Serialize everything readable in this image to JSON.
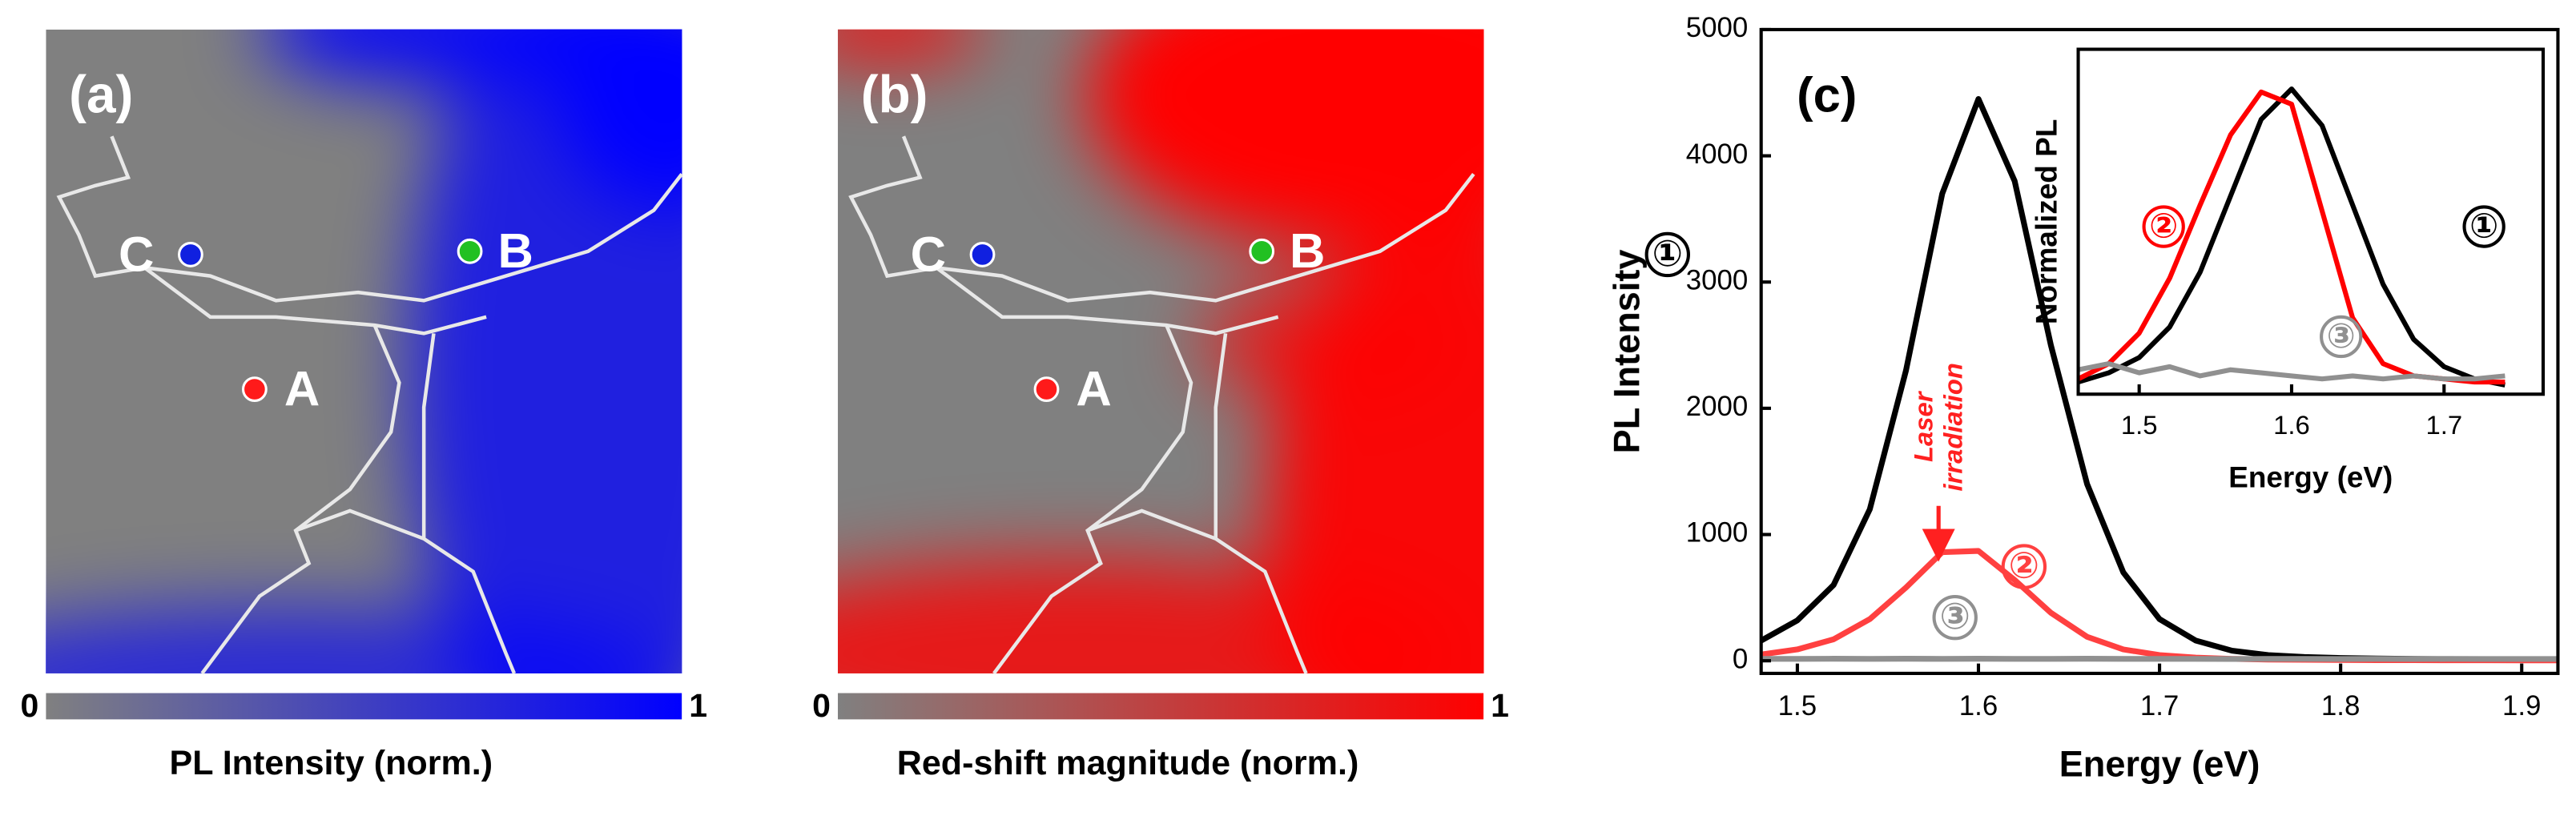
{
  "chart_data": [
    {
      "type": "map",
      "label": "(a)",
      "points": [
        {
          "label": "A",
          "color": "#ff1a1a"
        },
        {
          "label": "B",
          "color": "#22c022"
        },
        {
          "label": "C",
          "color": "#1020e0"
        }
      ],
      "colorbar": {
        "label": "PL Intensity (norm.)",
        "clim": [
          0,
          1
        ],
        "ticks": [
          0,
          1
        ],
        "colors": [
          "#808080",
          "#0000ff"
        ]
      }
    },
    {
      "type": "map",
      "label": "(b)",
      "points": [
        {
          "label": "A",
          "color": "#ff1a1a"
        },
        {
          "label": "B",
          "color": "#22c022"
        },
        {
          "label": "C",
          "color": "#1020e0"
        }
      ],
      "colorbar": {
        "label": "Red-shift magnitude (norm.)",
        "clim": [
          0,
          1
        ],
        "ticks": [
          0,
          1
        ],
        "colors": [
          "#808080",
          "#ff0000"
        ]
      }
    },
    {
      "type": "line",
      "label": "(c)",
      "x_label": "Energy (eV)",
      "y_label": "PL Intensity",
      "annotation": [
        "Laser",
        "irradiation"
      ],
      "xlim": [
        1.48,
        1.92
      ],
      "ylim": [
        -100,
        5000
      ],
      "xticks": [
        1.5,
        1.6,
        1.7,
        1.8,
        1.9
      ],
      "yticks": [
        0,
        1000,
        2000,
        3000,
        4000,
        5000
      ],
      "x": [
        1.48,
        1.5,
        1.52,
        1.54,
        1.56,
        1.58,
        1.6,
        1.62,
        1.64,
        1.66,
        1.68,
        1.7,
        1.72,
        1.74,
        1.76,
        1.78,
        1.8,
        1.82,
        1.84,
        1.86,
        1.88,
        1.9,
        1.92
      ],
      "series": [
        {
          "name": "①",
          "color": "#000000",
          "values": [
            160,
            320,
            600,
            1200,
            2300,
            3700,
            4450,
            3800,
            2500,
            1400,
            700,
            330,
            160,
            80,
            45,
            30,
            22,
            18,
            15,
            12,
            10,
            8,
            6
          ]
        },
        {
          "name": "②",
          "color": "#ff4040",
          "values": [
            50,
            90,
            170,
            330,
            580,
            860,
            870,
            640,
            380,
            190,
            90,
            45,
            25,
            15,
            10,
            8,
            6,
            5,
            5,
            4,
            4,
            3,
            3
          ]
        },
        {
          "name": "③",
          "color": "#909090",
          "values": [
            15,
            15,
            16,
            15,
            16,
            15,
            16,
            15,
            15,
            16,
            15,
            15,
            15,
            14,
            15,
            15,
            14,
            15,
            14,
            15,
            14,
            14,
            14
          ]
        }
      ]
    },
    {
      "type": "line",
      "x_label": "Energy (eV)",
      "y_label": "Normalized  PL",
      "xlim": [
        1.46,
        1.765
      ],
      "ylim": [
        0,
        1.13
      ],
      "xticks": [
        1.5,
        1.6,
        1.7
      ],
      "x": [
        1.46,
        1.48,
        1.5,
        1.52,
        1.54,
        1.56,
        1.58,
        1.6,
        1.62,
        1.64,
        1.66,
        1.68,
        1.7,
        1.72,
        1.74
      ],
      "series": [
        {
          "name": "①",
          "color": "#000000",
          "values": [
            0.04,
            0.07,
            0.12,
            0.22,
            0.4,
            0.65,
            0.9,
            1.0,
            0.88,
            0.62,
            0.36,
            0.18,
            0.09,
            0.05,
            0.03
          ]
        },
        {
          "name": "②",
          "color": "#ff0000",
          "values": [
            0.05,
            0.1,
            0.2,
            0.38,
            0.62,
            0.85,
            0.99,
            0.95,
            0.6,
            0.25,
            0.1,
            0.06,
            0.05,
            0.04,
            0.04
          ]
        },
        {
          "name": "③",
          "color": "#909090",
          "values": [
            0.08,
            0.1,
            0.07,
            0.09,
            0.06,
            0.08,
            0.07,
            0.06,
            0.05,
            0.06,
            0.05,
            0.06,
            0.05,
            0.05,
            0.06
          ]
        }
      ]
    }
  ]
}
